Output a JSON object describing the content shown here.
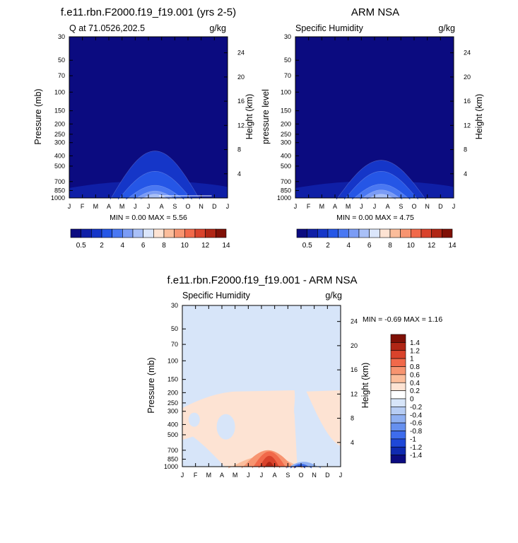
{
  "figure": {
    "panel_a": {
      "title": "f.e11.rbn.F2000.f19_f19.001 (yrs 2-5)",
      "left_label": "Q at 71.0526,202.5",
      "right_label": "g/kg",
      "ylabel": "Pressure (mb)",
      "ylabel_right": "Height (km)",
      "stats": "MIN =   0.00 MAX =   5.56"
    },
    "panel_b": {
      "title": "ARM NSA",
      "left_label": "Specific Humidity",
      "right_label": "g/kg",
      "ylabel": "pressure level",
      "ylabel_right": "Height (km)",
      "stats": "MIN =   0.00 MAX =   4.75"
    },
    "panel_c": {
      "title": "f.e11.rbn.F2000.f19_f19.001 - ARM NSA",
      "left_label": "Specific Humidity",
      "right_label": "g/kg",
      "ylabel": "Pressure (mb)",
      "ylabel_right": "Height (km)",
      "stats": "MIN =  -0.69 MAX =   1.16"
    }
  },
  "chart_data": [
    {
      "type": "heatmap",
      "title": "f.e11.rbn.F2000.f19_f19.001 (yrs 2-5)",
      "subtitle_left": "Q at 71.0526,202.5",
      "units": "g/kg",
      "xlabel": "",
      "ylabel": "Pressure (mb)",
      "ylabel_right": "Height (km)",
      "x_ticks": [
        "J",
        "F",
        "M",
        "A",
        "M",
        "J",
        "J",
        "A",
        "S",
        "O",
        "N",
        "D",
        "J"
      ],
      "y_ticks": [
        "30",
        "50",
        "70",
        "100",
        "150",
        "200",
        "250",
        "300",
        "400",
        "500",
        "700",
        "850",
        "1000"
      ],
      "y_ticks_right": [
        "24",
        "20",
        "16",
        "12",
        "8",
        "4"
      ],
      "ylim": [
        30,
        1000
      ],
      "y_scale": "log",
      "colorbar_labels": [
        "0.5",
        "2",
        "4",
        "6",
        "8",
        "10",
        "12",
        "14"
      ],
      "min": 0.0,
      "max": 5.56,
      "peak_month": "J",
      "contour_tops_mb": [
        360,
        560,
        760,
        860,
        920
      ]
    },
    {
      "type": "heatmap",
      "title": "ARM NSA",
      "subtitle_left": "Specific Humidity",
      "units": "g/kg",
      "xlabel": "",
      "ylabel": "pressure level",
      "ylabel_right": "Height (km)",
      "x_ticks": [
        "J",
        "F",
        "M",
        "A",
        "M",
        "J",
        "J",
        "A",
        "S",
        "O",
        "N",
        "D",
        "J"
      ],
      "y_ticks": [
        "30",
        "50",
        "70",
        "100",
        "150",
        "200",
        "250",
        "300",
        "400",
        "500",
        "700",
        "850",
        "1000"
      ],
      "y_ticks_right": [
        "24",
        "20",
        "16",
        "12",
        "8",
        "4"
      ],
      "ylim": [
        30,
        1000
      ],
      "y_scale": "log",
      "colorbar_labels": [
        "0.5",
        "2",
        "4",
        "6",
        "8",
        "10",
        "12",
        "14"
      ],
      "min": 0.0,
      "max": 4.75,
      "peak_month": "J",
      "contour_tops_mb": [
        440,
        560,
        740,
        840,
        920
      ]
    },
    {
      "type": "heatmap",
      "title": "f.e11.rbn.F2000.f19_f19.001 - ARM NSA",
      "subtitle_left": "Specific Humidity",
      "units": "g/kg",
      "xlabel": "",
      "ylabel": "Pressure (mb)",
      "ylabel_right": "Height (km)",
      "x_ticks": [
        "J",
        "F",
        "M",
        "A",
        "M",
        "J",
        "J",
        "A",
        "S",
        "O",
        "N",
        "D",
        "J"
      ],
      "y_ticks": [
        "30",
        "50",
        "70",
        "100",
        "150",
        "200",
        "250",
        "300",
        "400",
        "500",
        "700",
        "850",
        "1000"
      ],
      "y_ticks_right": [
        "24",
        "20",
        "16",
        "12",
        "8",
        "4"
      ],
      "ylim": [
        30,
        1000
      ],
      "y_scale": "log",
      "colorbar_labels": [
        "1.4",
        "1.2",
        "1",
        "0.8",
        "0.6",
        "0.4",
        "0.2",
        "0",
        "-0.2",
        "-0.4",
        "-0.6",
        "-0.8",
        "-1",
        "-1.2",
        "-1.4"
      ],
      "min": -0.69,
      "max": 1.16,
      "positive_peak_month": "J",
      "negative_min_month": "S"
    }
  ],
  "colors": {
    "seq_scale": [
      "#0b0b80",
      "#0f1fa6",
      "#1536c8",
      "#2556e6",
      "#4a78f2",
      "#7b9cf5",
      "#a9c0f7",
      "#dbe6fb",
      "#fde3d3",
      "#fbbd9b",
      "#f79470",
      "#f1694a",
      "#d9432c",
      "#b02615",
      "#7f1006"
    ],
    "div_scale": [
      "#7f1006",
      "#b02615",
      "#d9432c",
      "#f1694a",
      "#f79470",
      "#fbbd9b",
      "#fde3d3",
      "#ffffff",
      "#d7e5f9",
      "#b7cdf4",
      "#8fb0f2",
      "#6690ef",
      "#3e6cec",
      "#1f48d8",
      "#0f2ab0",
      "#0b0b80"
    ]
  }
}
